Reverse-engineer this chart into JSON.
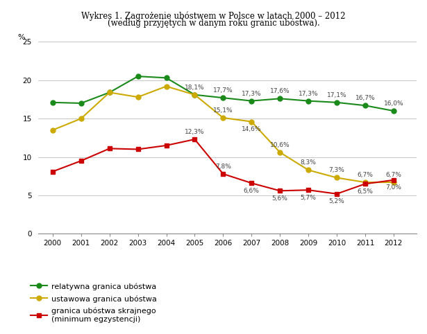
{
  "title_line1": "Wykres 1. Zagrożenie ubóstwem w Polsce w latach 2000 – 2012",
  "title_line2": "(według przyjętych w danym roku granic ubóstwa).",
  "years": [
    2000,
    2001,
    2002,
    2003,
    2004,
    2005,
    2006,
    2007,
    2008,
    2009,
    2010,
    2011,
    2012
  ],
  "green_line": [
    17.1,
    17.0,
    18.4,
    20.5,
    20.3,
    18.1,
    17.7,
    17.3,
    17.6,
    17.3,
    17.1,
    16.7,
    16.0
  ],
  "yellow_line": [
    13.5,
    15.0,
    18.4,
    17.8,
    19.2,
    18.1,
    15.1,
    14.6,
    10.6,
    8.3,
    7.3,
    6.7,
    6.7
  ],
  "red_line": [
    8.1,
    9.5,
    11.1,
    11.0,
    11.5,
    12.3,
    7.8,
    6.6,
    5.6,
    5.7,
    5.2,
    6.5,
    7.0
  ],
  "green_labels": [
    "",
    "",
    "",
    "",
    "",
    "18,1%",
    "17,7%",
    "17,3%",
    "17,6%",
    "17,3%",
    "17,1%",
    "16,7%",
    "16,0%"
  ],
  "yellow_labels": [
    "",
    "",
    "",
    "",
    "",
    "",
    "15,1%",
    "14,6%",
    "10,6%",
    "8,3%",
    "7,3%",
    "6,7%",
    "6,7%"
  ],
  "red_labels": [
    "",
    "",
    "",
    "",
    "",
    "12,3%",
    "7,8%",
    "6,6%",
    "5,6%",
    "5,7%",
    "5,2%",
    "6,5%",
    "7,0%"
  ],
  "green_color": "#1a8a1a",
  "yellow_color": "#ccaa00",
  "red_color": "#cc0000",
  "bg_color": "#FFFFFF",
  "ylabel": "%",
  "ylim": [
    0,
    25
  ],
  "yticks": [
    0,
    5,
    10,
    15,
    20,
    25
  ],
  "legend_green": "relatywna granica ubóstwa",
  "legend_yellow": "ustawowa granica ubóstwa",
  "legend_red_line1": "granica ubóstwa skrajnego",
  "legend_red_line2": "(minimum egzystencji)"
}
